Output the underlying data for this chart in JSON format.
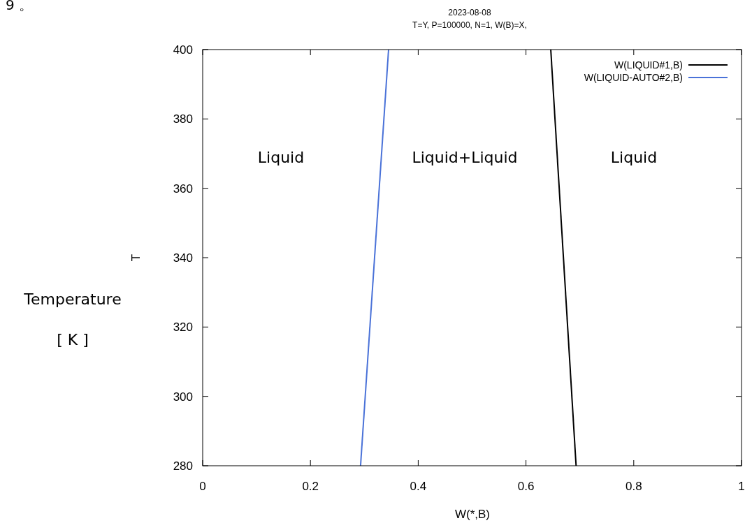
{
  "chart_data": {
    "type": "line",
    "title": "2023-08-08",
    "subtitle": "T=Y,  P=100000, N=1, W(B)=X,",
    "xlabel": "W(*,B)",
    "ylabel": "T",
    "annotations": [
      "9 。",
      "Temperature",
      "[ K ]",
      "Liquid",
      "Liquid+Liquid",
      "Liquid"
    ],
    "series": [
      {
        "name": "W(LIQUID#1,B)",
        "color": "#000000",
        "x": [
          0.646,
          0.693
        ],
        "values": [
          400,
          280
        ]
      },
      {
        "name": "W(LIQUID-AUTO#2,B)",
        "color": "#4a72d8",
        "x": [
          0.345,
          0.293
        ],
        "values": [
          400,
          280
        ]
      }
    ],
    "xlim": [
      0,
      1
    ],
    "xticks": [
      0,
      0.2,
      0.4,
      0.6,
      0.8,
      1
    ],
    "ylim": [
      280,
      400
    ],
    "yticks": [
      280,
      300,
      320,
      340,
      360,
      380,
      400
    ],
    "legend": "top right",
    "line_style": "solid"
  }
}
